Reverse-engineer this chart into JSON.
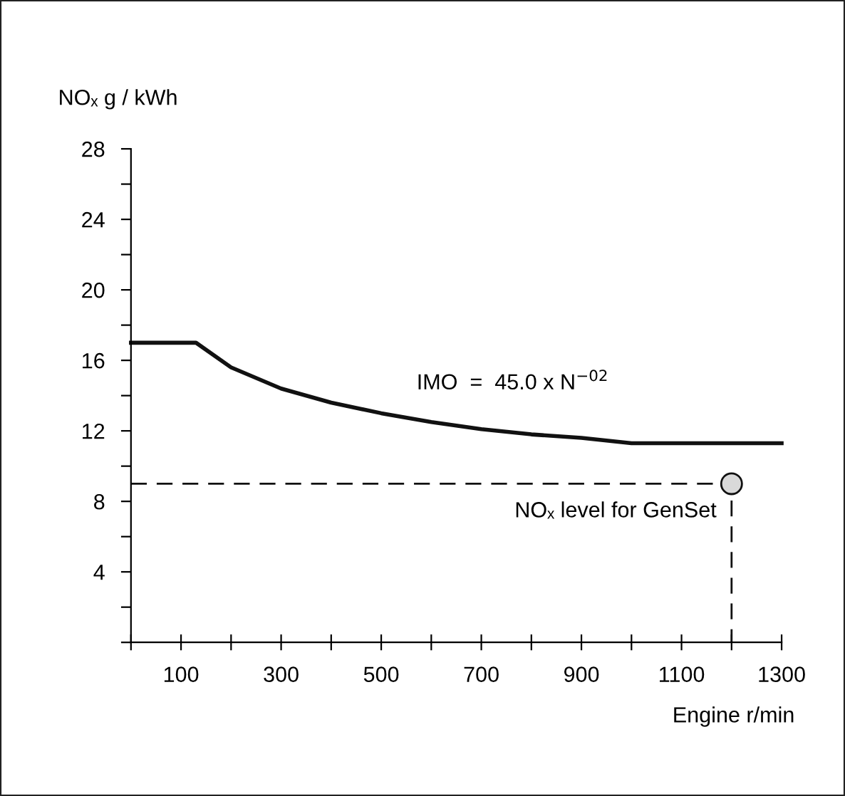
{
  "chart_data": {
    "type": "line",
    "xlabel": "Engine r/min",
    "ylabel": "NOₓ g / kWh",
    "xlim": [
      0,
      1300
    ],
    "ylim": [
      0,
      28
    ],
    "xticks": [
      {
        "value": 0,
        "label": null
      },
      100,
      {
        "value": 200,
        "label": null
      },
      300,
      {
        "value": 400,
        "label": null
      },
      500,
      {
        "value": 600,
        "label": null
      },
      700,
      {
        "value": 800,
        "label": null
      },
      900,
      {
        "value": 1000,
        "label": null
      },
      1100,
      {
        "value": 1200,
        "label": null
      },
      1300
    ],
    "yticks": [
      {
        "value": 0,
        "label": null
      },
      {
        "value": 2,
        "label": null
      },
      4,
      {
        "value": 6,
        "label": null
      },
      8,
      {
        "value": 10,
        "label": null
      },
      12,
      {
        "value": 14,
        "label": null
      },
      16,
      {
        "value": 18,
        "label": null
      },
      20,
      {
        "value": 22,
        "label": null
      },
      24,
      {
        "value": 26,
        "label": null
      },
      28
    ],
    "grid": false,
    "legend": false,
    "series": [
      {
        "color": "#111111",
        "line_style": "solid",
        "x": [
          0,
          130,
          200,
          300,
          400,
          500,
          600,
          700,
          800,
          900,
          1000,
          1080,
          1300
        ],
        "values": [
          17.0,
          17.0,
          15.6,
          14.4,
          13.6,
          13.0,
          12.5,
          12.1,
          11.8,
          11.6,
          11.3,
          11.3,
          11.3
        ]
      },
      {
        "type": "line",
        "color": "#111111",
        "line_style": "dashed",
        "x": [
          0,
          1200,
          1200
        ],
        "values": [
          9.0,
          9.0,
          0
        ]
      },
      {
        "type": "scatter",
        "color": "#d9d9d9",
        "marker": "circle",
        "x": [
          1200
        ],
        "values": [
          9.0
        ]
      }
    ],
    "annotations": [
      {
        "text": "IMO  =  45.0 x N$^{−02}$",
        "x": 1000,
        "y": 11.3
      },
      "NOₓ level for GenSet"
    ]
  }
}
